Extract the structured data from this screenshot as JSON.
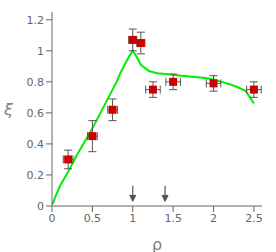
{
  "chart_data": {
    "type": "line",
    "xlabel": "ρ",
    "ylabel": "ξ",
    "xlim": [
      0.0,
      2.6
    ],
    "ylim": [
      0.0,
      1.25
    ],
    "xticks": [
      0,
      0.5,
      1,
      1.5,
      2,
      2.5
    ],
    "yticks": [
      0,
      0.2,
      0.4,
      0.6,
      0.8,
      1,
      1.2
    ],
    "series": [
      {
        "type": "line",
        "color": "#00ee00",
        "x": [
          0.005,
          0.05,
          0.1,
          0.2,
          0.3,
          0.4,
          0.5,
          0.6,
          0.65,
          0.7,
          0.75,
          0.8,
          0.85,
          0.9,
          0.95,
          1.0,
          1.05,
          1.1,
          1.2,
          1.3,
          1.4,
          1.5,
          1.6,
          1.7,
          1.8,
          1.9,
          2.0,
          2.1,
          2.2,
          2.3,
          2.4,
          2.5
        ],
        "values": [
          0.01,
          0.07,
          0.13,
          0.22,
          0.32,
          0.41,
          0.5,
          0.6,
          0.65,
          0.7,
          0.75,
          0.8,
          0.86,
          0.91,
          0.96,
          1.0,
          0.96,
          0.91,
          0.87,
          0.855,
          0.85,
          0.845,
          0.84,
          0.835,
          0.83,
          0.825,
          0.815,
          0.8,
          0.785,
          0.765,
          0.74,
          0.66
        ]
      },
      {
        "type": "scatter",
        "color": "#cc0000",
        "marker": "square",
        "x": [
          0.2,
          0.5,
          0.75,
          1.0,
          1.1,
          1.25,
          1.5,
          2.0,
          2.5
        ],
        "values": [
          0.3,
          0.45,
          0.62,
          1.07,
          1.05,
          0.75,
          0.8,
          0.79,
          0.75
        ],
        "xerr": [
          0.06,
          0.06,
          0.06,
          0.05,
          0.05,
          0.09,
          0.09,
          0.09,
          0.09
        ],
        "yerr": [
          0.06,
          0.1,
          0.07,
          0.07,
          0.07,
          0.05,
          0.05,
          0.05,
          0.05
        ]
      }
    ],
    "annotations": [
      {
        "type": "arrow",
        "x": 1.0,
        "y_start": 0.13,
        "y_end": 0.03,
        "color": "#555555"
      },
      {
        "type": "arrow",
        "x": 1.4,
        "y_start": 0.13,
        "y_end": 0.03,
        "color": "#555555"
      }
    ]
  }
}
